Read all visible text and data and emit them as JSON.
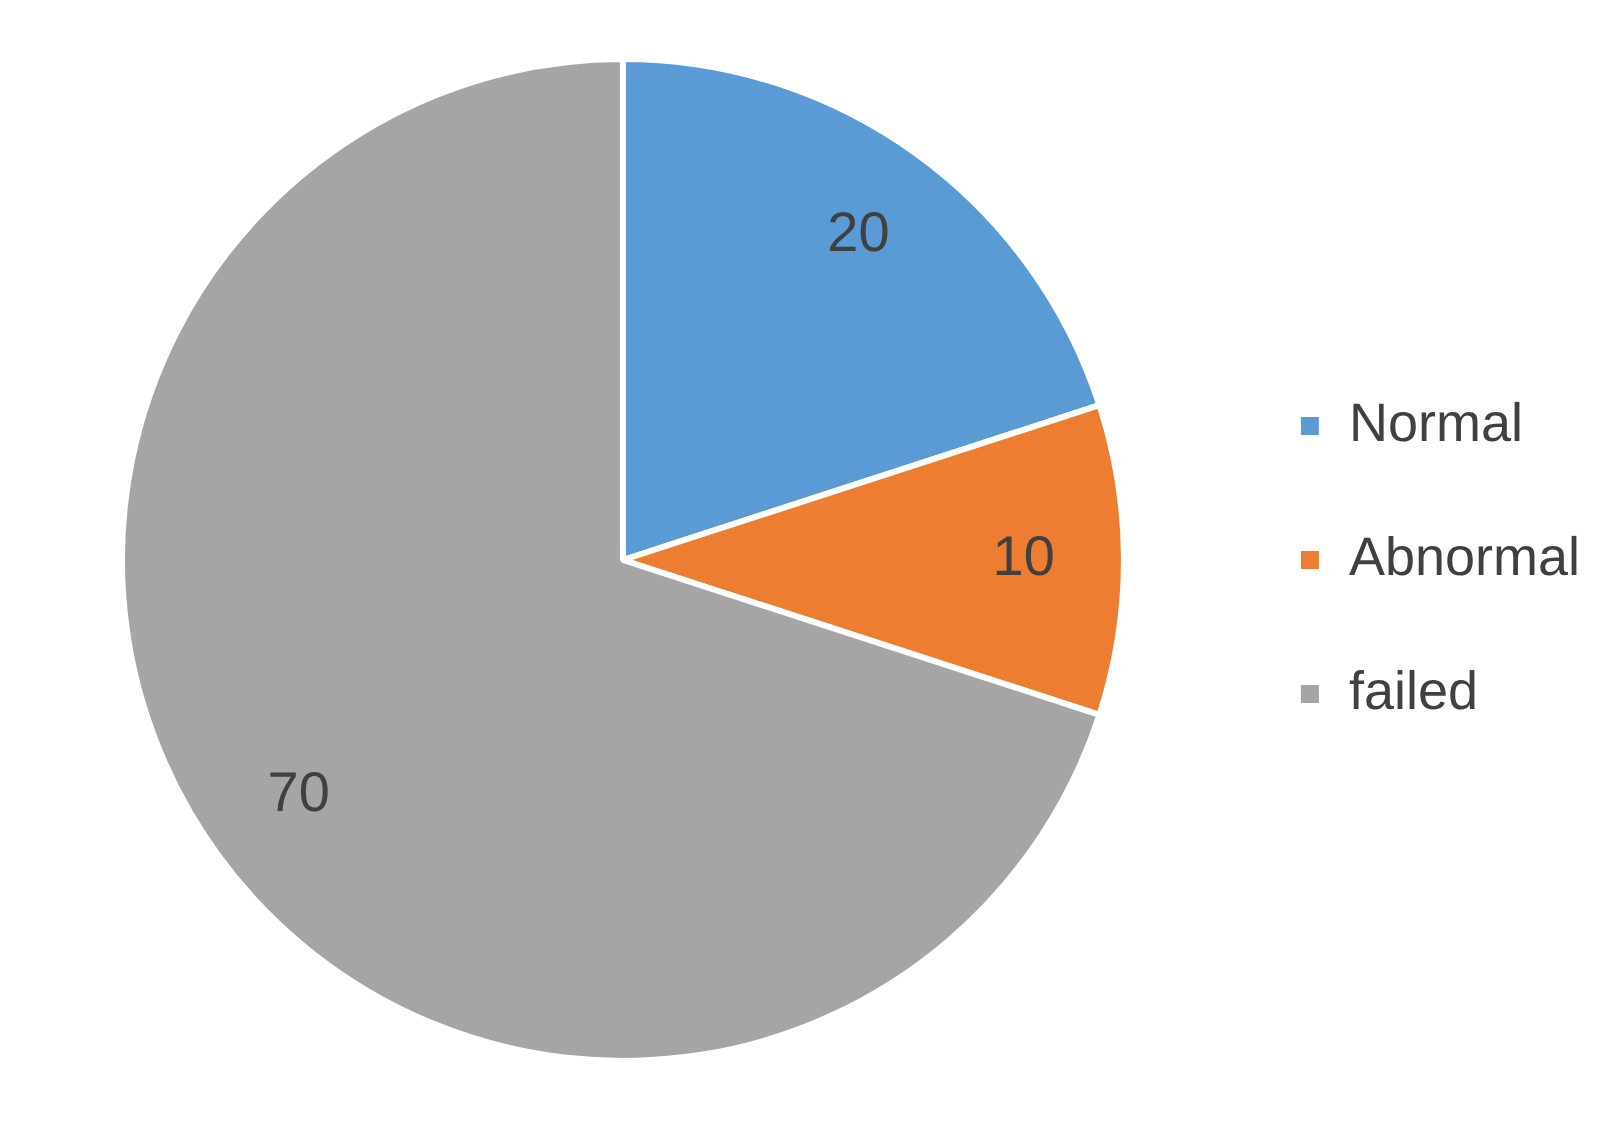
{
  "chart_data": {
    "type": "pie",
    "categories": [
      "Normal",
      "Abnormal",
      "failed"
    ],
    "values": [
      20,
      10,
      70
    ],
    "colors": [
      "#5b9bd5",
      "#ed7d31",
      "#a5a5a5"
    ],
    "data_labels": true,
    "legend": "right"
  }
}
